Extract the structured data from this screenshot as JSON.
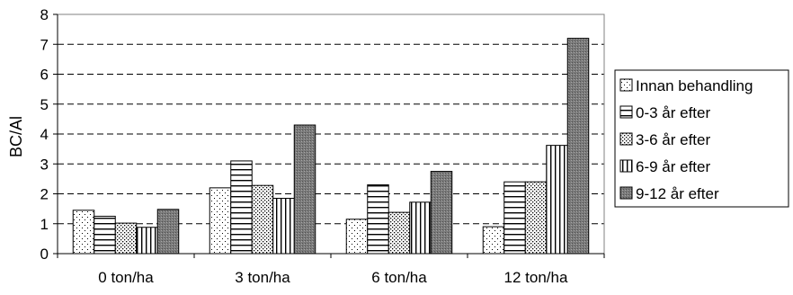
{
  "chart_data": {
    "type": "bar",
    "ylabel": "BC/Al",
    "xlabel": "",
    "title": "",
    "ylim": [
      0,
      8
    ],
    "y_ticks": [
      "0",
      "1",
      "2",
      "3",
      "4",
      "5",
      "6",
      "7",
      "8"
    ],
    "grid": "horizontal dashed",
    "legend_position": "right",
    "categories": [
      "0 ton/ha",
      "3 ton/ha",
      "6 ton/ha",
      "12 ton/ha"
    ],
    "series": [
      {
        "name": "Innan behandling",
        "values": [
          1.45,
          2.2,
          1.15,
          0.9
        ],
        "pattern": "dots"
      },
      {
        "name": "0-3 år efter",
        "values": [
          1.25,
          3.1,
          2.3,
          2.4
        ],
        "pattern": "hlines"
      },
      {
        "name": "3-6 år efter",
        "values": [
          1.02,
          2.28,
          1.38,
          2.4
        ],
        "pattern": "dense-dots"
      },
      {
        "name": "6-9 år efter",
        "values": [
          0.88,
          1.85,
          1.72,
          3.62
        ],
        "pattern": "vlines"
      },
      {
        "name": "9-12 år efter",
        "values": [
          1.48,
          4.3,
          2.75,
          7.2
        ],
        "pattern": "gray-cross"
      }
    ]
  }
}
